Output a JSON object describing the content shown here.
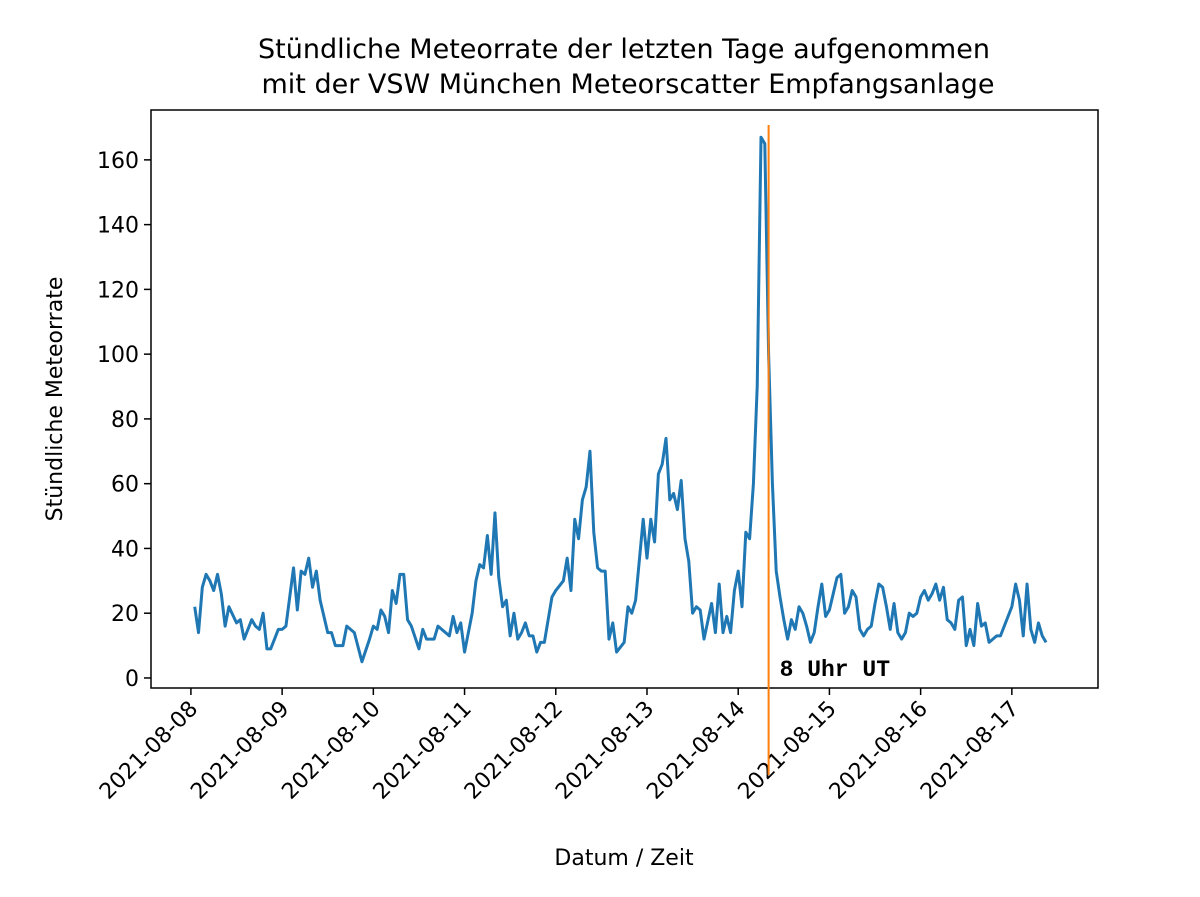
{
  "chart_data": {
    "type": "line",
    "title": [
      "Stündliche Meteorrate der letzten Tage aufgenommen",
      "mit der VSW München Meteorscatter Empfangsanlage"
    ],
    "xlabel": "Datum / Zeit",
    "ylabel": "Stündliche Meteorrate",
    "xlim": [
      "2021-08-07 13:30",
      "2021-08-17 22:40"
    ],
    "xticks": [
      "2021-08-08",
      "2021-08-09",
      "2021-08-10",
      "2021-08-11",
      "2021-08-12",
      "2021-08-13",
      "2021-08-14",
      "2021-08-15",
      "2021-08-16",
      "2021-08-17"
    ],
    "ylim": [
      -3.1,
      175.4
    ],
    "yticks": [
      0,
      20,
      40,
      60,
      80,
      100,
      120,
      140,
      160
    ],
    "annotation": {
      "text": "8 Uhr UT",
      "x": "2021-08-14 08:00",
      "color": "#ff7f0e"
    },
    "series": [
      {
        "color": "#1f77b4",
        "x": [
          "2021-08-08 01:00",
          "2021-08-08 02:00",
          "2021-08-08 03:00",
          "2021-08-08 04:00",
          "2021-08-08 05:00",
          "2021-08-08 06:00",
          "2021-08-08 07:00",
          "2021-08-08 08:00",
          "2021-08-08 09:00",
          "2021-08-08 10:00",
          "2021-08-08 12:00",
          "2021-08-08 13:00",
          "2021-08-08 14:00",
          "2021-08-08 16:00",
          "2021-08-08 17:00",
          "2021-08-08 18:00",
          "2021-08-08 19:00",
          "2021-08-08 20:00",
          "2021-08-08 21:00",
          "2021-08-08 23:00",
          "2021-08-09 00:00",
          "2021-08-09 01:00",
          "2021-08-09 03:00",
          "2021-08-09 04:00",
          "2021-08-09 05:00",
          "2021-08-09 06:00",
          "2021-08-09 07:00",
          "2021-08-09 08:00",
          "2021-08-09 09:00",
          "2021-08-09 10:00",
          "2021-08-09 12:00",
          "2021-08-09 13:00",
          "2021-08-09 14:00",
          "2021-08-09 16:00",
          "2021-08-09 17:00",
          "2021-08-09 19:00",
          "2021-08-09 21:00",
          "2021-08-09 23:00",
          "2021-08-10 00:00",
          "2021-08-10 01:00",
          "2021-08-10 02:00",
          "2021-08-10 03:00",
          "2021-08-10 04:00",
          "2021-08-10 05:00",
          "2021-08-10 06:00",
          "2021-08-10 07:00",
          "2021-08-10 08:00",
          "2021-08-10 09:00",
          "2021-08-10 10:00",
          "2021-08-10 12:00",
          "2021-08-10 13:00",
          "2021-08-10 14:00",
          "2021-08-10 16:00",
          "2021-08-10 17:00",
          "2021-08-10 19:00",
          "2021-08-10 20:00",
          "2021-08-10 21:00",
          "2021-08-10 22:00",
          "2021-08-10 23:00",
          "2021-08-11 00:00",
          "2021-08-11 02:00",
          "2021-08-11 03:00",
          "2021-08-11 04:00",
          "2021-08-11 05:00",
          "2021-08-11 06:00",
          "2021-08-11 07:00",
          "2021-08-11 08:00",
          "2021-08-11 09:00",
          "2021-08-11 10:00",
          "2021-08-11 11:00",
          "2021-08-11 12:00",
          "2021-08-11 13:00",
          "2021-08-11 14:00",
          "2021-08-11 15:00",
          "2021-08-11 16:00",
          "2021-08-11 17:00",
          "2021-08-11 18:00",
          "2021-08-11 19:00",
          "2021-08-11 20:00",
          "2021-08-11 21:00",
          "2021-08-11 23:00",
          "2021-08-12 00:00",
          "2021-08-12 02:00",
          "2021-08-12 03:00",
          "2021-08-12 04:00",
          "2021-08-12 05:00",
          "2021-08-12 06:00",
          "2021-08-12 07:00",
          "2021-08-12 08:00",
          "2021-08-12 09:00",
          "2021-08-12 10:00",
          "2021-08-12 11:00",
          "2021-08-12 12:00",
          "2021-08-12 13:00",
          "2021-08-12 14:00",
          "2021-08-12 15:00",
          "2021-08-12 16:00",
          "2021-08-12 18:00",
          "2021-08-12 19:00",
          "2021-08-12 20:00",
          "2021-08-12 21:00",
          "2021-08-12 23:00",
          "2021-08-13 00:00",
          "2021-08-13 01:00",
          "2021-08-13 02:00",
          "2021-08-13 03:00",
          "2021-08-13 04:00",
          "2021-08-13 05:00",
          "2021-08-13 06:00",
          "2021-08-13 07:00",
          "2021-08-13 08:00",
          "2021-08-13 09:00",
          "2021-08-13 10:00",
          "2021-08-13 11:00",
          "2021-08-13 12:00",
          "2021-08-13 13:00",
          "2021-08-13 14:00",
          "2021-08-13 15:00",
          "2021-08-13 17:00",
          "2021-08-13 18:00",
          "2021-08-13 19:00",
          "2021-08-13 20:00",
          "2021-08-13 21:00",
          "2021-08-13 22:00",
          "2021-08-13 23:00",
          "2021-08-14 00:00",
          "2021-08-14 01:00",
          "2021-08-14 02:00",
          "2021-08-14 03:00",
          "2021-08-14 04:00",
          "2021-08-14 05:00",
          "2021-08-14 06:00",
          "2021-08-14 07:00",
          "2021-08-14 08:00",
          "2021-08-14 09:00",
          "2021-08-14 10:00",
          "2021-08-14 11:00",
          "2021-08-14 12:00",
          "2021-08-14 13:00",
          "2021-08-14 14:00",
          "2021-08-14 15:00",
          "2021-08-14 16:00",
          "2021-08-14 17:00",
          "2021-08-14 18:00",
          "2021-08-14 19:00",
          "2021-08-14 20:00",
          "2021-08-14 21:00",
          "2021-08-14 22:00",
          "2021-08-14 23:00",
          "2021-08-15 00:00",
          "2021-08-15 01:00",
          "2021-08-15 02:00",
          "2021-08-15 03:00",
          "2021-08-15 04:00",
          "2021-08-15 05:00",
          "2021-08-15 06:00",
          "2021-08-15 07:00",
          "2021-08-15 08:00",
          "2021-08-15 09:00",
          "2021-08-15 10:00",
          "2021-08-15 11:00",
          "2021-08-15 12:00",
          "2021-08-15 13:00",
          "2021-08-15 14:00",
          "2021-08-15 15:00",
          "2021-08-15 16:00",
          "2021-08-15 17:00",
          "2021-08-15 18:00",
          "2021-08-15 19:00",
          "2021-08-15 20:00",
          "2021-08-15 21:00",
          "2021-08-15 22:00",
          "2021-08-15 23:00",
          "2021-08-16 00:00",
          "2021-08-16 01:00",
          "2021-08-16 02:00",
          "2021-08-16 03:00",
          "2021-08-16 04:00",
          "2021-08-16 05:00",
          "2021-08-16 06:00",
          "2021-08-16 07:00",
          "2021-08-16 08:00",
          "2021-08-16 09:00",
          "2021-08-16 10:00",
          "2021-08-16 11:00",
          "2021-08-16 12:00",
          "2021-08-16 13:00",
          "2021-08-16 14:00",
          "2021-08-16 15:00",
          "2021-08-16 16:00",
          "2021-08-16 17:00",
          "2021-08-16 18:00",
          "2021-08-16 19:00",
          "2021-08-16 20:00",
          "2021-08-16 21:00",
          "2021-08-17 00:00",
          "2021-08-17 01:00",
          "2021-08-17 02:00",
          "2021-08-17 03:00",
          "2021-08-17 04:00",
          "2021-08-17 05:00",
          "2021-08-17 06:00",
          "2021-08-17 07:00",
          "2021-08-17 08:00",
          "2021-08-17 09:00"
        ],
        "values": [
          22,
          14,
          28,
          32,
          30,
          27,
          32,
          26,
          16,
          22,
          17,
          18,
          12,
          18,
          16,
          15,
          20,
          9,
          9,
          15,
          15,
          16,
          34,
          21,
          33,
          32,
          37,
          28,
          33,
          24,
          14,
          14,
          10,
          10,
          16,
          14,
          5,
          12,
          16,
          15,
          21,
          19,
          14,
          27,
          23,
          32,
          32,
          18,
          16,
          9,
          15,
          12,
          12,
          16,
          14,
          13,
          19,
          14,
          17,
          8,
          20,
          30,
          35,
          34,
          44,
          32,
          51,
          31,
          22,
          24,
          13,
          20,
          12,
          14,
          17,
          13,
          13,
          8,
          11,
          11,
          25,
          27,
          30,
          37,
          27,
          49,
          43,
          55,
          59,
          70,
          45,
          34,
          33,
          33,
          12,
          17,
          8,
          11,
          22,
          20,
          24,
          49,
          37,
          49,
          42,
          63,
          66,
          74,
          55,
          57,
          52,
          61,
          43,
          36,
          20,
          22,
          21,
          12,
          23,
          14,
          29,
          14,
          19,
          14,
          27,
          33,
          22,
          45,
          43,
          60,
          90,
          167,
          165,
          100,
          60,
          33,
          25,
          18,
          12,
          18,
          15,
          22,
          20,
          16,
          11,
          14,
          22,
          29,
          19,
          21,
          26,
          31,
          32,
          20,
          22,
          27,
          25,
          15,
          13,
          15,
          16,
          23,
          29,
          28,
          22,
          15,
          23,
          14,
          12,
          14,
          20,
          19,
          20,
          25,
          27,
          24,
          26,
          29,
          24,
          28,
          18,
          17,
          15,
          24,
          25,
          10,
          15,
          10,
          23,
          16,
          17,
          11,
          12,
          13,
          13,
          22,
          29,
          24,
          13,
          29,
          15,
          11,
          17,
          13,
          11
        ]
      }
    ]
  }
}
